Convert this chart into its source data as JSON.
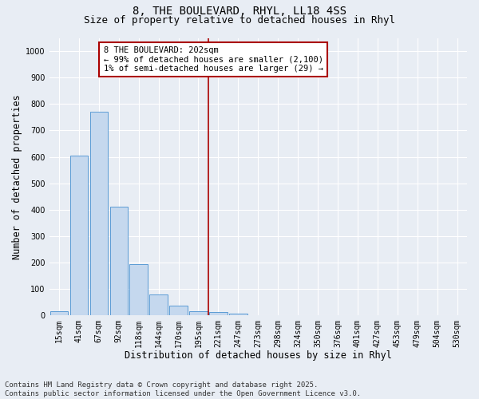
{
  "title_line1": "8, THE BOULEVARD, RHYL, LL18 4SS",
  "title_line2": "Size of property relative to detached houses in Rhyl",
  "xlabel": "Distribution of detached houses by size in Rhyl",
  "ylabel": "Number of detached properties",
  "categories": [
    "15sqm",
    "41sqm",
    "67sqm",
    "92sqm",
    "118sqm",
    "144sqm",
    "170sqm",
    "195sqm",
    "221sqm",
    "247sqm",
    "273sqm",
    "298sqm",
    "324sqm",
    "350sqm",
    "376sqm",
    "401sqm",
    "427sqm",
    "453sqm",
    "479sqm",
    "504sqm",
    "530sqm"
  ],
  "values": [
    15,
    605,
    770,
    410,
    193,
    78,
    37,
    15,
    13,
    8,
    2,
    0,
    0,
    0,
    0,
    0,
    0,
    0,
    0,
    0,
    0
  ],
  "bar_color": "#c5d8ee",
  "bar_edge_color": "#5b9bd5",
  "vline_x": 7.5,
  "vline_color": "#aa0000",
  "annotation_text": "8 THE BOULEVARD: 202sqm\n← 99% of detached houses are smaller (2,100)\n1% of semi-detached houses are larger (29) →",
  "annotation_box_color": "#aa0000",
  "annotation_bg": "#ffffff",
  "ylim": [
    0,
    1050
  ],
  "yticks": [
    0,
    100,
    200,
    300,
    400,
    500,
    600,
    700,
    800,
    900,
    1000
  ],
  "bg_color": "#e8edf4",
  "grid_color": "#ffffff",
  "footer_line1": "Contains HM Land Registry data © Crown copyright and database right 2025.",
  "footer_line2": "Contains public sector information licensed under the Open Government Licence v3.0.",
  "title_fontsize": 10,
  "subtitle_fontsize": 9,
  "axis_label_fontsize": 8.5,
  "tick_fontsize": 7,
  "annotation_fontsize": 7.5,
  "footer_fontsize": 6.5
}
